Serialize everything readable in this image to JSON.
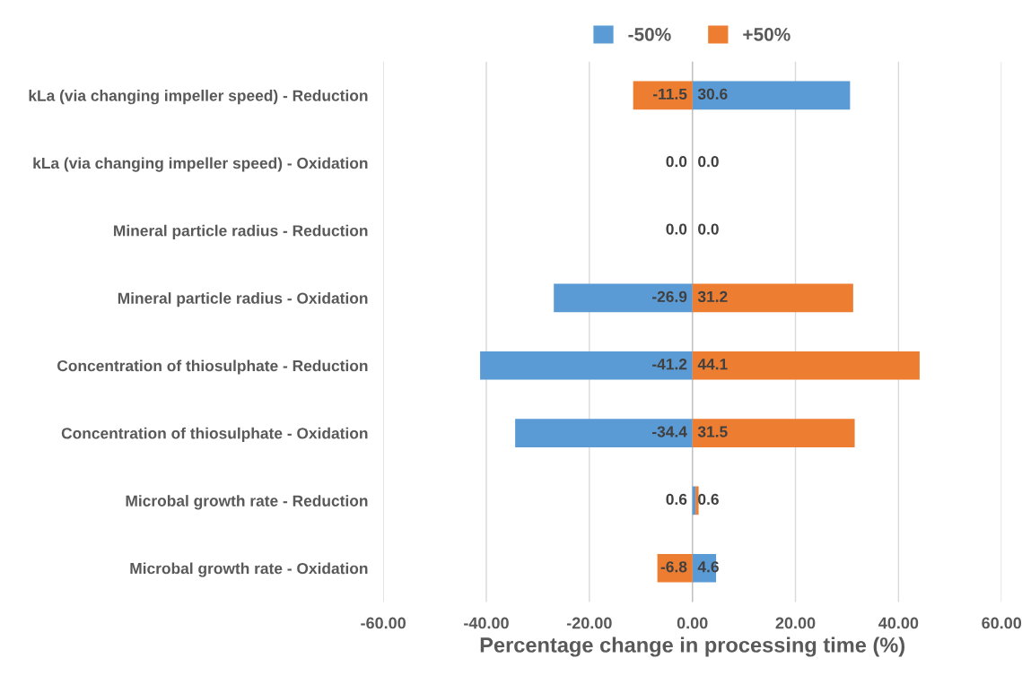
{
  "chart_data": {
    "type": "bar",
    "orientation": "horizontal",
    "xlabel": "Percentage change in processing time (%)",
    "categories": [
      "kLa (via changing impeller speed) - Reduction",
      "kLa (via changing impeller speed) - Oxidation",
      "Mineral particle radius - Reduction",
      "Mineral particle radius - Oxidation",
      "Concentration of thiosulphate - Reduction",
      "Concentration of thiosulphate - Oxidation",
      "Microbal growth rate - Reduction",
      "Microbal growth rate - Oxidation"
    ],
    "series": [
      {
        "name": "-50%",
        "color": "#5b9bd5",
        "values": [
          30.6,
          0.0,
          0.0,
          -26.9,
          -41.2,
          -34.4,
          0.6,
          4.6
        ],
        "value_labels": [
          "30.6",
          "0.0",
          "0.0",
          "-26.9",
          "-41.2",
          "-34.4",
          "0.6",
          "4.6"
        ]
      },
      {
        "name": "+50%",
        "color": "#ed7d31",
        "values": [
          -11.5,
          0.0,
          0.0,
          31.2,
          44.1,
          31.5,
          0.6,
          -6.8
        ],
        "value_labels": [
          "-11.5",
          "0.0",
          "0.0",
          "31.2",
          "44.1",
          "31.5",
          "0.6",
          "-6.8"
        ]
      }
    ],
    "xlim": [
      -60,
      60
    ],
    "xticks": [
      {
        "value": -60,
        "label": "-60.00"
      },
      {
        "value": -40,
        "label": "-40.00"
      },
      {
        "value": -20,
        "label": "-20.00"
      },
      {
        "value": 0,
        "label": "0.00"
      },
      {
        "value": 20,
        "label": "20.00"
      },
      {
        "value": 40,
        "label": "40.00"
      },
      {
        "value": 60,
        "label": "60.00"
      }
    ],
    "grid": "x",
    "legend": "top",
    "stacked": true
  }
}
